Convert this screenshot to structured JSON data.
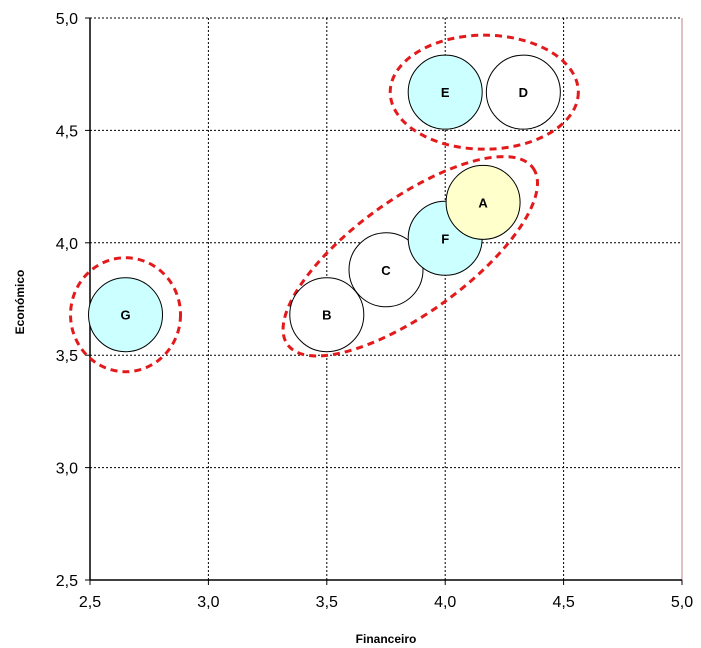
{
  "chart_data": {
    "type": "scatter",
    "xlabel": "Financeiro",
    "ylabel": "Económico",
    "xlim": [
      2.5,
      5.0
    ],
    "ylim": [
      2.5,
      5.0
    ],
    "xticks": [
      "2,5",
      "3,0",
      "3,5",
      "4,0",
      "4,5",
      "5,0"
    ],
    "yticks": [
      "2,5",
      "3,0",
      "3,5",
      "4,0",
      "4,5",
      "5,0"
    ],
    "grid": true,
    "points": [
      {
        "label": "G",
        "x": 2.65,
        "y": 3.68,
        "color": "#ccffff"
      },
      {
        "label": "B",
        "x": 3.5,
        "y": 3.68,
        "color": "#ffffff"
      },
      {
        "label": "C",
        "x": 3.75,
        "y": 3.88,
        "color": "#ffffff"
      },
      {
        "label": "F",
        "x": 4.0,
        "y": 4.02,
        "color": "#ccffff"
      },
      {
        "label": "A",
        "x": 4.16,
        "y": 4.18,
        "color": "#ffffcc"
      },
      {
        "label": "E",
        "x": 4.0,
        "y": 4.67,
        "color": "#ccffff"
      },
      {
        "label": "D",
        "x": 4.33,
        "y": 4.67,
        "color": "#ffffff"
      }
    ],
    "groups": [
      {
        "members": [
          "G"
        ],
        "color": "#e31a1c"
      },
      {
        "members": [
          "B",
          "C",
          "F",
          "A"
        ],
        "color": "#e31a1c"
      },
      {
        "members": [
          "E",
          "D"
        ],
        "color": "#e31a1c"
      }
    ]
  }
}
